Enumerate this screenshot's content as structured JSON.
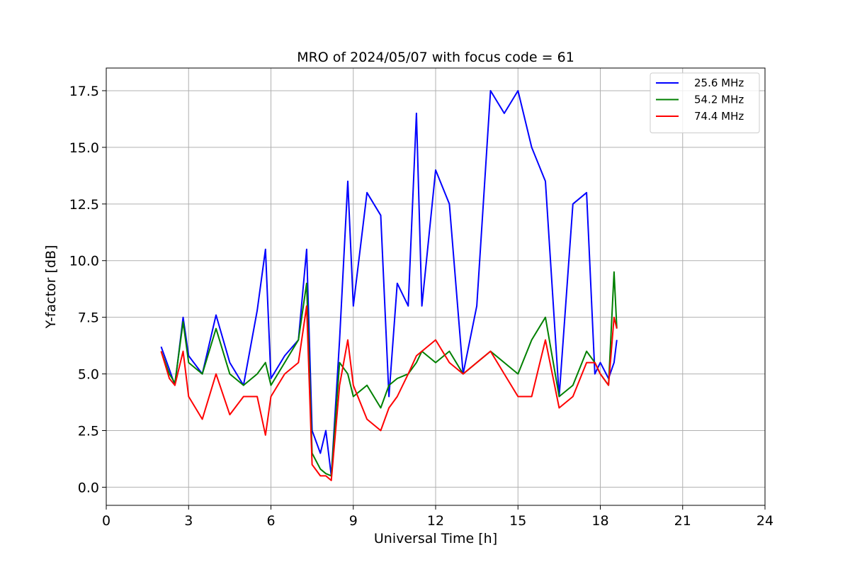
{
  "chart_data": {
    "type": "line",
    "title": "MRO of 2024/05/07 with focus code = 61",
    "xlabel": "Universal Time [h]",
    "ylabel": "Y-factor [dB]",
    "xlim": [
      0,
      24
    ],
    "ylim": [
      -0.8,
      18.5
    ],
    "xticks": [
      0,
      3,
      6,
      9,
      12,
      15,
      18,
      21,
      24
    ],
    "xtick_labels": [
      "0",
      "3",
      "6",
      "9",
      "12",
      "15",
      "18",
      "21",
      "24"
    ],
    "yticks": [
      0.0,
      2.5,
      5.0,
      7.5,
      10.0,
      12.5,
      15.0,
      17.5
    ],
    "ytick_labels": [
      "0.0",
      "2.5",
      "5.0",
      "7.5",
      "10.0",
      "12.5",
      "15.0",
      "17.5"
    ],
    "grid": true,
    "legend_position": "top-right",
    "series": [
      {
        "name": "25.6 MHz",
        "color": "#0000ff",
        "x": [
          2.0,
          2.3,
          2.5,
          2.8,
          3.0,
          3.5,
          4.0,
          4.5,
          5.0,
          5.5,
          5.8,
          6.0,
          6.5,
          7.0,
          7.3,
          7.5,
          7.8,
          8.0,
          8.2,
          8.5,
          8.8,
          9.0,
          9.5,
          10.0,
          10.3,
          10.6,
          11.0,
          11.3,
          11.5,
          12.0,
          12.5,
          13.0,
          13.5,
          14.0,
          14.5,
          15.0,
          15.5,
          16.0,
          16.5,
          17.0,
          17.5,
          17.8,
          18.0,
          18.3,
          18.5,
          18.6
        ],
        "y": [
          6.2,
          5.2,
          4.5,
          7.5,
          5.8,
          5.0,
          7.6,
          5.5,
          4.5,
          7.8,
          10.5,
          4.8,
          5.8,
          6.5,
          10.5,
          2.5,
          1.5,
          2.5,
          0.5,
          6.5,
          13.5,
          8.0,
          13.0,
          12.0,
          4.0,
          9.0,
          8.0,
          16.5,
          8.0,
          14.0,
          12.5,
          5.0,
          8.0,
          17.5,
          16.5,
          17.5,
          15.0,
          13.5,
          4.0,
          12.5,
          13.0,
          5.0,
          5.5,
          4.8,
          5.5,
          6.5
        ]
      },
      {
        "name": "54.2 MHz",
        "color": "#008000",
        "x": [
          2.0,
          2.3,
          2.5,
          2.8,
          3.0,
          3.5,
          4.0,
          4.5,
          5.0,
          5.5,
          5.8,
          6.0,
          6.5,
          7.0,
          7.3,
          7.5,
          7.8,
          8.0,
          8.2,
          8.5,
          8.8,
          9.0,
          9.5,
          10.0,
          10.3,
          10.6,
          11.0,
          11.3,
          11.5,
          12.0,
          12.5,
          13.0,
          13.5,
          14.0,
          14.5,
          15.0,
          15.5,
          16.0,
          16.5,
          17.0,
          17.5,
          17.8,
          18.0,
          18.3,
          18.5,
          18.6
        ],
        "y": [
          6.0,
          5.0,
          4.6,
          7.3,
          5.5,
          5.0,
          7.0,
          5.0,
          4.5,
          5.0,
          5.5,
          4.5,
          5.5,
          6.5,
          9.0,
          1.5,
          0.8,
          0.6,
          0.5,
          5.5,
          5.0,
          4.0,
          4.5,
          3.5,
          4.5,
          4.8,
          5.0,
          5.5,
          6.0,
          5.5,
          6.0,
          5.0,
          5.5,
          6.0,
          5.5,
          5.0,
          6.5,
          7.5,
          4.0,
          4.5,
          6.0,
          5.5,
          5.0,
          4.5,
          9.5,
          7.0
        ]
      },
      {
        "name": "74.4 MHz",
        "color": "#ff0000",
        "x": [
          2.0,
          2.3,
          2.5,
          2.8,
          3.0,
          3.5,
          4.0,
          4.5,
          5.0,
          5.5,
          5.8,
          6.0,
          6.5,
          7.0,
          7.3,
          7.5,
          7.8,
          8.0,
          8.2,
          8.5,
          8.8,
          9.0,
          9.5,
          10.0,
          10.3,
          10.6,
          11.0,
          11.3,
          11.5,
          12.0,
          12.5,
          13.0,
          13.5,
          14.0,
          14.5,
          15.0,
          15.5,
          16.0,
          16.5,
          17.0,
          17.5,
          17.8,
          18.0,
          18.3,
          18.5,
          18.6
        ],
        "y": [
          6.0,
          4.8,
          4.5,
          6.0,
          4.0,
          3.0,
          5.0,
          3.2,
          4.0,
          4.0,
          2.3,
          4.0,
          5.0,
          5.5,
          8.0,
          1.0,
          0.5,
          0.5,
          0.3,
          4.5,
          6.5,
          4.5,
          3.0,
          2.5,
          3.5,
          4.0,
          5.0,
          5.8,
          6.0,
          6.5,
          5.5,
          5.0,
          5.5,
          6.0,
          5.0,
          4.0,
          4.0,
          6.5,
          3.5,
          4.0,
          5.5,
          5.5,
          5.0,
          4.5,
          7.5,
          7.0
        ]
      }
    ]
  }
}
